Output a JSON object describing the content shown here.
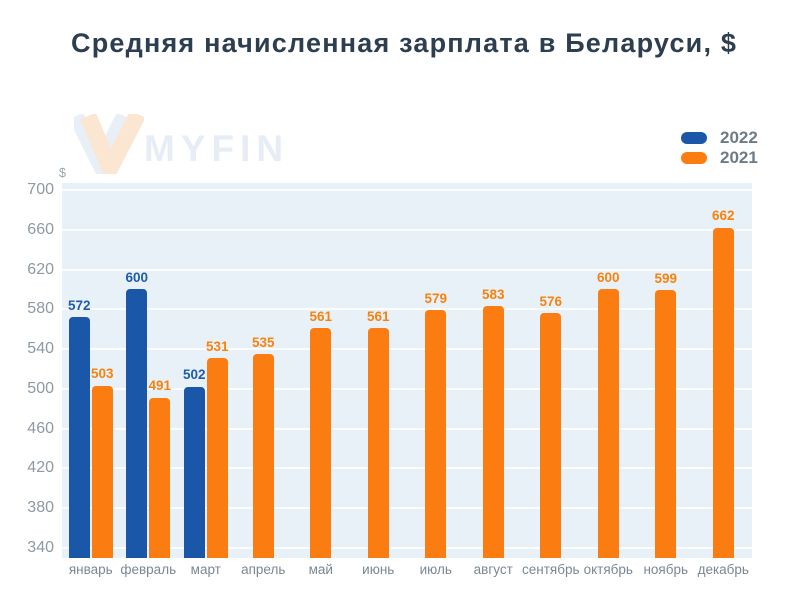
{
  "title": "Средняя начисленная зарплата в Беларуси, $",
  "watermark": {
    "brand": "MYFIN"
  },
  "chart_data": {
    "type": "bar",
    "title": "Средняя начисленная зарплата в Беларуси, $",
    "unit_label": "$",
    "categories": [
      "январь",
      "февраль",
      "март",
      "апрель",
      "май",
      "июнь",
      "июль",
      "август",
      "сентябрь",
      "октябрь",
      "ноябрь",
      "декабрь"
    ],
    "series": [
      {
        "name": "2022",
        "color": "#1b57a8",
        "label_color": "#1d5cad",
        "values": [
          572,
          600,
          502,
          null,
          null,
          null,
          null,
          null,
          null,
          null,
          null,
          null
        ]
      },
      {
        "name": "2021",
        "color": "#fb7d11",
        "label_color": "#f8820e",
        "values": [
          503,
          491,
          531,
          535,
          561,
          561,
          579,
          583,
          576,
          600,
          599,
          662
        ]
      }
    ],
    "ylim": [
      340,
      700
    ],
    "yticks": [
      340,
      380,
      420,
      460,
      500,
      540,
      580,
      620,
      660,
      700
    ],
    "grid": true,
    "legend_position": "top-right",
    "plot_background": "#e9f1f8"
  }
}
